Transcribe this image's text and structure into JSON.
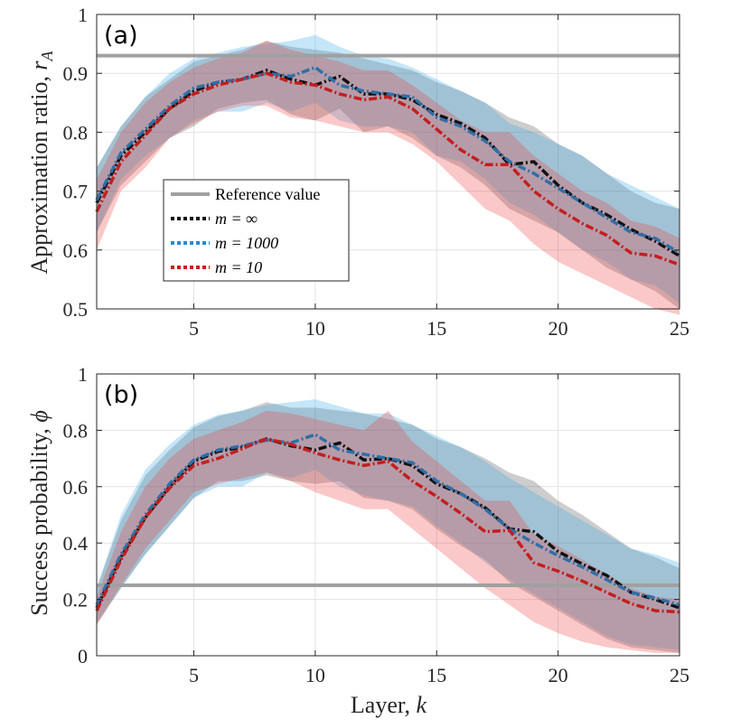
{
  "colors": {
    "reference": "#a0a0a0",
    "m_inf": "#111111",
    "m_1000": "#2f6fa8",
    "m_10": "#c41e1e",
    "band_inf": "#4d4d4d",
    "band_1000": "#2ea6e6",
    "band_10": "#ee3a3a",
    "grid": "#e3e3e3"
  },
  "xlabel": "Layer, ",
  "xlabel_var": "k",
  "legend": {
    "reference": "Reference value",
    "m_inf": "m = ∞",
    "m_1000": "m = 1000",
    "m_10": "m = 10"
  },
  "chart_data": [
    {
      "type": "line",
      "panel_label": "(a)",
      "ylabel": "Approximation ratio, ",
      "ylabel_var": "r",
      "ylabel_sub": "A",
      "xlim": [
        1,
        25
      ],
      "ylim": [
        0.5,
        1
      ],
      "xticks": [
        5,
        10,
        15,
        20,
        25
      ],
      "yticks": [
        0.5,
        0.6,
        0.7,
        0.8,
        0.9,
        1
      ],
      "ytick_labels": [
        "0.5",
        "0.6",
        "0.7",
        "0.8",
        "0.9",
        "1"
      ],
      "reference_value": 0.93,
      "x": [
        1,
        2,
        3,
        4,
        5,
        6,
        7,
        8,
        9,
        10,
        11,
        12,
        13,
        14,
        15,
        16,
        17,
        18,
        19,
        20,
        21,
        22,
        23,
        24,
        25
      ],
      "series": [
        {
          "name": "m = ∞",
          "key": "m_inf",
          "values": [
            0.68,
            0.76,
            0.8,
            0.84,
            0.87,
            0.885,
            0.89,
            0.905,
            0.89,
            0.88,
            0.895,
            0.865,
            0.865,
            0.855,
            0.83,
            0.815,
            0.79,
            0.745,
            0.75,
            0.71,
            0.68,
            0.66,
            0.635,
            0.615,
            0.59
          ],
          "upper": [
            0.74,
            0.81,
            0.86,
            0.89,
            0.92,
            0.93,
            0.94,
            0.955,
            0.945,
            0.94,
            0.935,
            0.925,
            0.915,
            0.905,
            0.885,
            0.87,
            0.85,
            0.825,
            0.81,
            0.78,
            0.76,
            0.73,
            0.7,
            0.68,
            0.67
          ],
          "lower": [
            0.63,
            0.71,
            0.75,
            0.79,
            0.81,
            0.84,
            0.85,
            0.855,
            0.83,
            0.82,
            0.84,
            0.8,
            0.81,
            0.79,
            0.76,
            0.74,
            0.71,
            0.67,
            0.65,
            0.63,
            0.6,
            0.57,
            0.55,
            0.53,
            0.5
          ]
        },
        {
          "name": "m = 1000",
          "key": "m_1000",
          "values": [
            0.685,
            0.765,
            0.805,
            0.845,
            0.875,
            0.885,
            0.89,
            0.9,
            0.895,
            0.91,
            0.88,
            0.87,
            0.865,
            0.86,
            0.825,
            0.81,
            0.785,
            0.75,
            0.73,
            0.705,
            0.68,
            0.655,
            0.63,
            0.62,
            0.595
          ],
          "upper": [
            0.74,
            0.81,
            0.86,
            0.9,
            0.925,
            0.935,
            0.945,
            0.95,
            0.955,
            0.965,
            0.945,
            0.93,
            0.925,
            0.91,
            0.89,
            0.87,
            0.85,
            0.815,
            0.8,
            0.78,
            0.76,
            0.73,
            0.71,
            0.69,
            0.67
          ],
          "lower": [
            0.63,
            0.72,
            0.76,
            0.79,
            0.82,
            0.835,
            0.835,
            0.85,
            0.835,
            0.85,
            0.82,
            0.81,
            0.81,
            0.8,
            0.76,
            0.75,
            0.72,
            0.68,
            0.66,
            0.63,
            0.6,
            0.58,
            0.55,
            0.54,
            0.51
          ]
        },
        {
          "name": "m = 10",
          "key": "m_10",
          "values": [
            0.665,
            0.75,
            0.795,
            0.84,
            0.865,
            0.88,
            0.89,
            0.9,
            0.885,
            0.88,
            0.865,
            0.855,
            0.86,
            0.84,
            0.805,
            0.77,
            0.745,
            0.745,
            0.7,
            0.67,
            0.645,
            0.625,
            0.595,
            0.59,
            0.575
          ],
          "upper": [
            0.72,
            0.8,
            0.85,
            0.885,
            0.91,
            0.925,
            0.935,
            0.955,
            0.94,
            0.93,
            0.92,
            0.905,
            0.905,
            0.88,
            0.85,
            0.82,
            0.8,
            0.8,
            0.76,
            0.73,
            0.7,
            0.68,
            0.65,
            0.64,
            0.62
          ],
          "lower": [
            0.6,
            0.7,
            0.74,
            0.79,
            0.815,
            0.835,
            0.845,
            0.845,
            0.825,
            0.82,
            0.81,
            0.8,
            0.8,
            0.78,
            0.75,
            0.71,
            0.67,
            0.65,
            0.61,
            0.58,
            0.56,
            0.54,
            0.52,
            0.5,
            0.49
          ]
        }
      ]
    },
    {
      "type": "line",
      "panel_label": "(b)",
      "ylabel": "Success probability, ",
      "ylabel_var": "ϕ",
      "ylabel_sub": "",
      "xlim": [
        1,
        25
      ],
      "ylim": [
        0,
        1
      ],
      "xticks": [
        5,
        10,
        15,
        20,
        25
      ],
      "yticks": [
        0,
        0.2,
        0.4,
        0.6,
        0.8,
        1
      ],
      "ytick_labels": [
        "0",
        "0.2",
        "0.4",
        "0.6",
        "0.8",
        "1"
      ],
      "reference_value": 0.25,
      "x": [
        1,
        2,
        3,
        4,
        5,
        6,
        7,
        8,
        9,
        10,
        11,
        12,
        13,
        14,
        15,
        16,
        17,
        18,
        19,
        20,
        21,
        22,
        23,
        24,
        25
      ],
      "series": [
        {
          "name": "m = ∞",
          "key": "m_inf",
          "values": [
            0.17,
            0.35,
            0.49,
            0.6,
            0.69,
            0.725,
            0.74,
            0.77,
            0.745,
            0.73,
            0.755,
            0.695,
            0.7,
            0.675,
            0.61,
            0.575,
            0.525,
            0.45,
            0.44,
            0.37,
            0.325,
            0.285,
            0.225,
            0.2,
            0.17
          ],
          "upper": [
            0.24,
            0.48,
            0.64,
            0.73,
            0.81,
            0.85,
            0.87,
            0.9,
            0.88,
            0.88,
            0.87,
            0.86,
            0.84,
            0.82,
            0.77,
            0.74,
            0.7,
            0.65,
            0.62,
            0.55,
            0.5,
            0.44,
            0.38,
            0.35,
            0.31
          ],
          "lower": [
            0.11,
            0.24,
            0.36,
            0.46,
            0.56,
            0.62,
            0.62,
            0.64,
            0.62,
            0.61,
            0.62,
            0.56,
            0.55,
            0.52,
            0.45,
            0.39,
            0.34,
            0.26,
            0.21,
            0.16,
            0.11,
            0.06,
            0.03,
            0.02,
            0.01
          ]
        },
        {
          "name": "m = 1000",
          "key": "m_1000",
          "values": [
            0.18,
            0.36,
            0.5,
            0.61,
            0.695,
            0.73,
            0.745,
            0.765,
            0.755,
            0.785,
            0.73,
            0.715,
            0.7,
            0.685,
            0.62,
            0.575,
            0.52,
            0.45,
            0.4,
            0.355,
            0.315,
            0.27,
            0.225,
            0.205,
            0.18
          ],
          "upper": [
            0.24,
            0.5,
            0.66,
            0.75,
            0.82,
            0.855,
            0.87,
            0.89,
            0.9,
            0.91,
            0.885,
            0.86,
            0.86,
            0.82,
            0.78,
            0.74,
            0.69,
            0.63,
            0.58,
            0.53,
            0.48,
            0.43,
            0.38,
            0.36,
            0.33
          ],
          "lower": [
            0.12,
            0.24,
            0.36,
            0.46,
            0.56,
            0.6,
            0.6,
            0.65,
            0.63,
            0.66,
            0.6,
            0.57,
            0.55,
            0.53,
            0.46,
            0.4,
            0.33,
            0.27,
            0.22,
            0.17,
            0.12,
            0.07,
            0.04,
            0.03,
            0.02
          ]
        },
        {
          "name": "m = 10",
          "key": "m_10",
          "values": [
            0.16,
            0.34,
            0.49,
            0.595,
            0.675,
            0.7,
            0.735,
            0.77,
            0.75,
            0.72,
            0.695,
            0.675,
            0.69,
            0.62,
            0.565,
            0.505,
            0.44,
            0.445,
            0.33,
            0.3,
            0.265,
            0.225,
            0.185,
            0.16,
            0.155
          ],
          "upper": [
            0.21,
            0.44,
            0.6,
            0.7,
            0.77,
            0.8,
            0.83,
            0.87,
            0.86,
            0.84,
            0.82,
            0.8,
            0.87,
            0.76,
            0.69,
            0.62,
            0.55,
            0.55,
            0.43,
            0.39,
            0.34,
            0.29,
            0.24,
            0.21,
            0.2
          ],
          "lower": [
            0.11,
            0.25,
            0.38,
            0.48,
            0.58,
            0.61,
            0.63,
            0.65,
            0.62,
            0.58,
            0.55,
            0.52,
            0.52,
            0.45,
            0.38,
            0.31,
            0.24,
            0.18,
            0.12,
            0.08,
            0.05,
            0.03,
            0.02,
            0.01,
            0.01
          ]
        }
      ]
    }
  ]
}
